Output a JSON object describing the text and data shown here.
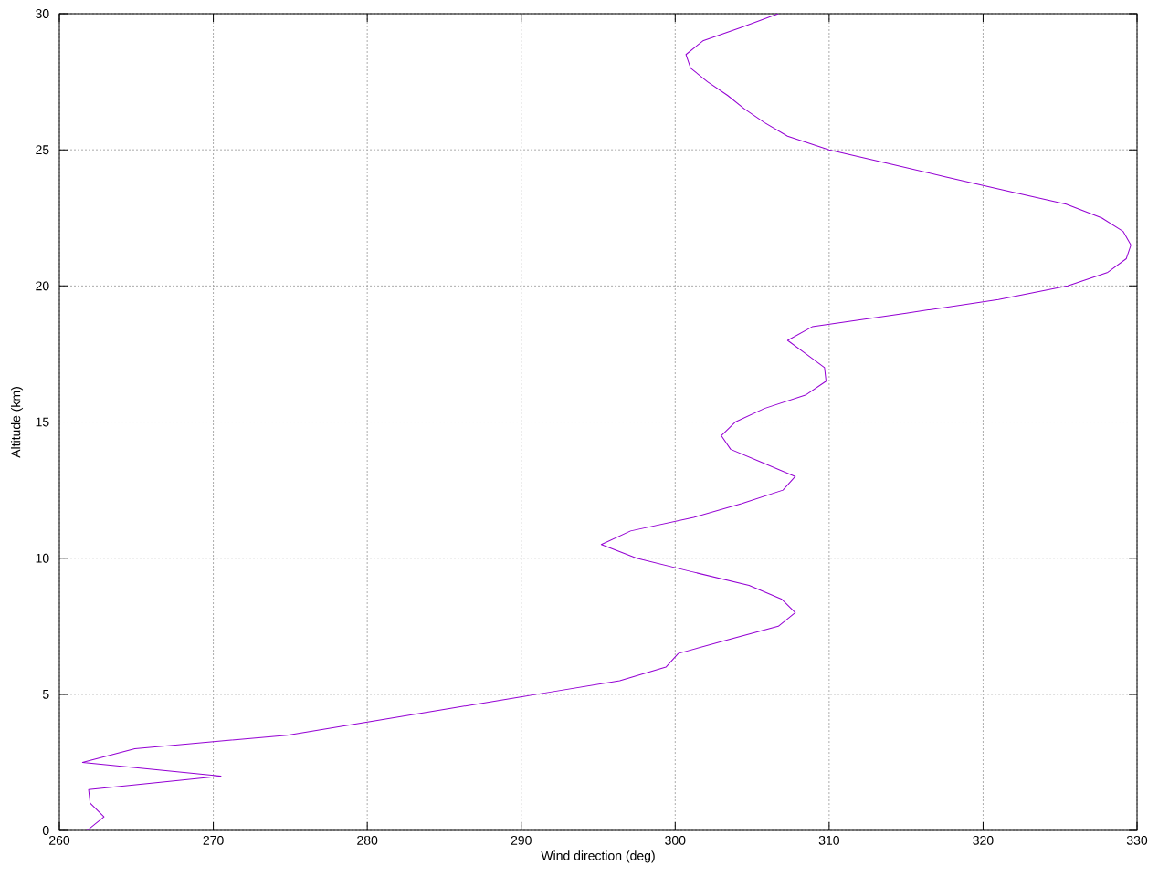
{
  "chart_data": {
    "type": "line",
    "xlabel": "Wind direction (deg)",
    "ylabel": "Altitude (km)",
    "xlim": [
      260,
      330
    ],
    "ylim": [
      0,
      30
    ],
    "xticks": [
      260,
      270,
      280,
      290,
      300,
      310,
      320,
      330
    ],
    "yticks": [
      0,
      5,
      10,
      15,
      20,
      25,
      30
    ],
    "grid": true,
    "marker": "none",
    "line_style": "solid",
    "series": [
      {
        "color": "#9400d3",
        "x": [
          261.8,
          262.9,
          262.0,
          261.9,
          270.5,
          261.5,
          264.9,
          274.8,
          280.2,
          285.6,
          291.0,
          296.4,
          299.4,
          300.2,
          303.4,
          306.7,
          307.8,
          306.9,
          304.8,
          301.1,
          297.5,
          295.2,
          297.1,
          301.2,
          304.3,
          307.0,
          307.8,
          305.7,
          303.6,
          303.0,
          303.9,
          305.8,
          308.5,
          309.8,
          309.7,
          308.5,
          307.3,
          308.9,
          315.0,
          321.0,
          325.5,
          328.1,
          329.3,
          329.6,
          329.1,
          327.7,
          325.4,
          321.5,
          317.6,
          313.8,
          310.0,
          307.3,
          305.8,
          304.5,
          303.4,
          302.1,
          301.0,
          300.7,
          301.8,
          304.3,
          306.7
        ],
        "values": [
          0,
          0.5,
          1,
          1.5,
          2,
          2.5,
          3,
          3.5,
          4,
          4.5,
          5,
          5.5,
          6,
          6.5,
          7,
          7.5,
          8,
          8.5,
          9,
          9.5,
          10,
          10.5,
          11,
          11.5,
          12,
          12.5,
          13,
          13.5,
          14,
          14.5,
          15,
          15.5,
          16,
          16.5,
          17,
          17.5,
          18,
          18.5,
          19,
          19.5,
          20,
          20.5,
          21,
          21.5,
          22,
          22.5,
          23,
          23.5,
          24,
          24.5,
          25,
          25.5,
          26,
          26.5,
          27,
          27.5,
          28,
          28.5,
          29,
          29.5,
          30
        ]
      }
    ]
  }
}
